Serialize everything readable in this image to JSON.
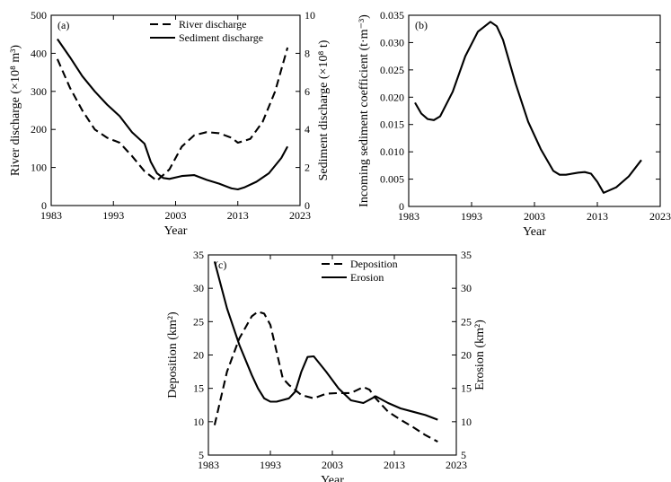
{
  "chart_data": [
    {
      "panel": "(a)",
      "type": "line",
      "xlabel": "Year",
      "ylabel": "River discharge (×10⁸ m³)",
      "ylabel_right": "Sediment discharge (×10⁸ t)",
      "xlim": [
        1983,
        2023
      ],
      "ylim": [
        0,
        500
      ],
      "ylim_right": [
        0,
        10
      ],
      "xticks": [
        "1983",
        "1993",
        "2003",
        "2013",
        "2023"
      ],
      "yticks": [
        "0",
        "100",
        "200",
        "300",
        "400",
        "500"
      ],
      "yticks_right": [
        "0",
        "2",
        "4",
        "6",
        "8",
        "10"
      ],
      "legend": [
        "River discharge",
        "Sediment discharge"
      ],
      "series": [
        {
          "name": "River discharge",
          "axis": "left",
          "style": "dashed",
          "x": [
            1984,
            1986,
            1988,
            1990,
            1992,
            1994,
            1996,
            1998,
            2000,
            2002,
            2004,
            2006,
            2008,
            2010,
            2012,
            2013,
            2015,
            2017,
            2019,
            2021
          ],
          "y": [
            385,
            310,
            250,
            200,
            178,
            165,
            130,
            90,
            65,
            95,
            155,
            185,
            193,
            190,
            178,
            165,
            175,
            220,
            300,
            415
          ]
        },
        {
          "name": "Sediment discharge",
          "axis": "right",
          "style": "solid",
          "x": [
            1984,
            1986,
            1988,
            1990,
            1992,
            1994,
            1996,
            1998,
            1999,
            2000,
            2001,
            2002,
            2004,
            2006,
            2008,
            2010,
            2012,
            2013,
            2014,
            2016,
            2018,
            2020,
            2021
          ],
          "y": [
            8.75,
            7.8,
            6.8,
            6.0,
            5.3,
            4.7,
            3.85,
            3.25,
            2.3,
            1.7,
            1.45,
            1.4,
            1.55,
            1.6,
            1.35,
            1.15,
            0.9,
            0.85,
            0.95,
            1.25,
            1.7,
            2.5,
            3.1
          ]
        }
      ]
    },
    {
      "panel": "(b)",
      "type": "line",
      "xlabel": "Year",
      "ylabel": "Incoming sediment coefficient (t·m⁻³)",
      "xlim": [
        1983,
        2023
      ],
      "ylim": [
        0,
        0.035
      ],
      "xticks": [
        "1983",
        "1993",
        "2003",
        "2013",
        "2023"
      ],
      "yticks": [
        "0",
        "0.005",
        "0.010",
        "0.015",
        "0.020",
        "0.025",
        "0.030",
        "0.035"
      ],
      "series": [
        {
          "name": "Incoming sediment coefficient",
          "style": "solid",
          "x": [
            1984,
            1985,
            1986,
            1987,
            1988,
            1990,
            1992,
            1994,
            1996,
            1997,
            1998,
            2000,
            2002,
            2004,
            2006,
            2007,
            2008,
            2010,
            2011,
            2012,
            2013,
            2014,
            2016,
            2018,
            2020
          ],
          "y": [
            0.019,
            0.017,
            0.016,
            0.0158,
            0.0165,
            0.021,
            0.0275,
            0.032,
            0.0338,
            0.033,
            0.0305,
            0.0225,
            0.0155,
            0.0105,
            0.0065,
            0.0058,
            0.0058,
            0.0062,
            0.0063,
            0.006,
            0.0045,
            0.0025,
            0.0035,
            0.0055,
            0.0085
          ]
        }
      ]
    },
    {
      "panel": "(c)",
      "type": "line",
      "xlabel": "Year",
      "ylabel": "Deposition (km²)",
      "ylabel_right": "Erosion (km²)",
      "xlim": [
        1983,
        2023
      ],
      "ylim": [
        5,
        35
      ],
      "ylim_right": [
        5,
        35
      ],
      "xticks": [
        "1983",
        "1993",
        "2003",
        "2013",
        "2023"
      ],
      "yticks": [
        "5",
        "10",
        "15",
        "20",
        "25",
        "30",
        "35"
      ],
      "yticks_right": [
        "5",
        "10",
        "15",
        "20",
        "25",
        "30",
        "35"
      ],
      "legend": [
        "Deposition",
        "Erosion"
      ],
      "series": [
        {
          "name": "Deposition",
          "axis": "left",
          "style": "dashed",
          "x": [
            1984,
            1986,
            1988,
            1990,
            1991,
            1992,
            1993,
            1994,
            1995,
            1996,
            1998,
            2000,
            2002,
            2004,
            2006,
            2008,
            2009,
            2010,
            2011,
            2012,
            2014,
            2016,
            2018,
            2020
          ],
          "y": [
            9.5,
            17.5,
            22.5,
            25.8,
            26.5,
            26.2,
            24.5,
            20.5,
            16.5,
            15.5,
            14.0,
            13.5,
            14.2,
            14.3,
            14.3,
            15.2,
            14.8,
            13.5,
            12.5,
            11.5,
            10.3,
            9.2,
            8.0,
            7.0
          ]
        },
        {
          "name": "Erosion",
          "axis": "right",
          "style": "solid",
          "x": [
            1984,
            1986,
            1988,
            1990,
            1991,
            1992,
            1993,
            1994,
            1996,
            1997,
            1998,
            1999,
            2000,
            2002,
            2004,
            2006,
            2008,
            2010,
            2012,
            2014,
            2016,
            2018,
            2020
          ],
          "y": [
            34.0,
            27.0,
            21.5,
            17.0,
            15.0,
            13.5,
            13.0,
            13.0,
            13.5,
            14.5,
            17.5,
            19.7,
            19.8,
            17.5,
            15.0,
            13.2,
            12.8,
            13.8,
            12.8,
            12.0,
            11.5,
            11.0,
            10.3
          ]
        }
      ]
    }
  ]
}
